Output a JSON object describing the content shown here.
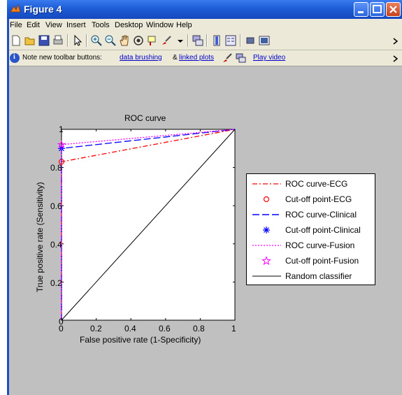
{
  "window": {
    "title": "Figure 4"
  },
  "menu": [
    "File",
    "Edit",
    "View",
    "Insert",
    "Tools",
    "Desktop",
    "Window",
    "Help"
  ],
  "toolbar_icons": [
    "new-figure-icon",
    "open-file-icon",
    "save-icon",
    "print-icon",
    "pointer-icon",
    "zoom-in-icon",
    "zoom-out-icon",
    "pan-hand-icon",
    "rotate-3d-icon",
    "data-cursor-icon",
    "brush-icon",
    "link-plot-icon",
    "colorbar-icon",
    "legend-icon",
    "hide-plot-tools-icon",
    "show-plot-tools-icon"
  ],
  "note": {
    "prefix": "Note new toolbar buttons:",
    "link1": "data brushing",
    "amp": "&",
    "link2": "linked plots",
    "video": "Play video"
  },
  "chart_data": {
    "type": "line",
    "title": "ROC curve",
    "xlabel": "False positive rate (1-Specificity)",
    "ylabel": "True positive rate (Sensitivity)",
    "xlim": [
      0,
      1
    ],
    "ylim": [
      0,
      1
    ],
    "xticks": [
      "0",
      "0.2",
      "0.4",
      "0.6",
      "0.8",
      "1"
    ],
    "yticks": [
      "0",
      "0.2",
      "0.4",
      "0.6",
      "0.8",
      "1"
    ],
    "legend_position": "right, outside",
    "series": [
      {
        "name": "ROC curve-ECG",
        "color": "#ff0000",
        "style": "dash-dot",
        "x": [
          0,
          0,
          1
        ],
        "y": [
          0,
          0.83,
          1
        ]
      },
      {
        "name": "Cut-off point-ECG",
        "color": "#ff0000",
        "style": "marker-circle",
        "x": [
          0
        ],
        "y": [
          0.83
        ]
      },
      {
        "name": "ROC curve-Clinical",
        "color": "#0000ff",
        "style": "dashed",
        "x": [
          0,
          0,
          1
        ],
        "y": [
          0,
          0.9,
          1
        ]
      },
      {
        "name": "Cut-off point-Clinical",
        "color": "#0000ff",
        "style": "marker-star",
        "x": [
          0
        ],
        "y": [
          0.9
        ]
      },
      {
        "name": "ROC curve-Fusion",
        "color": "#ff00ff",
        "style": "dotted",
        "x": [
          0,
          0,
          1
        ],
        "y": [
          0,
          0.92,
          1
        ]
      },
      {
        "name": "Cut-off point-Fusion",
        "color": "#ff00ff",
        "style": "marker-pentagram",
        "x": [
          0
        ],
        "y": [
          0.92
        ]
      },
      {
        "name": "Random classifier",
        "color": "#000000",
        "style": "solid",
        "x": [
          0,
          1
        ],
        "y": [
          0,
          1
        ]
      }
    ]
  }
}
